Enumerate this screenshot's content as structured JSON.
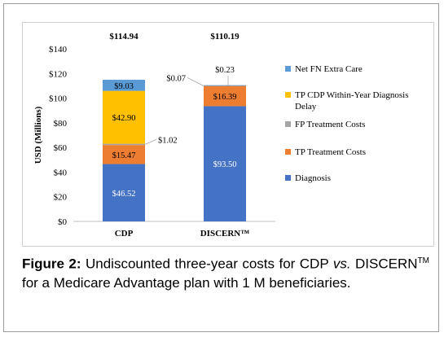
{
  "caption": {
    "label": "Figure 2:",
    "text_before": "Undiscounted three-year costs for CDP ",
    "vs": "vs.",
    "discern": "DISCERN",
    "tm": "TM",
    "text_after": " for a Medicare Advantage plan with 1 M beneficiaries."
  },
  "chart_data": {
    "type": "bar",
    "stacked": true,
    "ylabel": "USD (Millions)",
    "ylim": [
      0,
      140
    ],
    "yticks": [
      "$0",
      "$20",
      "$40",
      "$60",
      "$80",
      "$100",
      "$120",
      "$140"
    ],
    "ytick_values": [
      0,
      20,
      40,
      60,
      80,
      100,
      120,
      140
    ],
    "categories": [
      "CDP",
      "DISCERN™"
    ],
    "totals": [
      "$114.94",
      "$110.19"
    ],
    "legend_position": "right",
    "series": [
      {
        "name": "Diagnosis",
        "color": "#4472C4",
        "values": [
          46.52,
          93.5
        ],
        "labels": [
          "$46.52",
          "$93.50"
        ]
      },
      {
        "name": "TP Treatment Costs",
        "color": "#ED7D31",
        "values": [
          15.47,
          16.39
        ],
        "labels": [
          "$15.47",
          "$16.39"
        ]
      },
      {
        "name": "FP Treatment Costs",
        "color": "#A5A5A5",
        "values": [
          1.02,
          0.07
        ],
        "labels": [
          "$1.02",
          "$0.07"
        ]
      },
      {
        "name": "TP CDP Within-Year Diagnosis Delay",
        "color": "#FFC000",
        "values": [
          42.9,
          0
        ],
        "labels": [
          "$42.90",
          ""
        ]
      },
      {
        "name": "Net FN Extra Care",
        "color": "#5B9BD5",
        "values": [
          9.03,
          0.23
        ],
        "labels": [
          "$9.03",
          "$0.23"
        ]
      }
    ],
    "legend_order": [
      "Net FN Extra Care",
      "TP CDP Within-Year Diagnosis Delay",
      "FP Treatment Costs",
      "TP Treatment Costs",
      "Diagnosis"
    ]
  }
}
